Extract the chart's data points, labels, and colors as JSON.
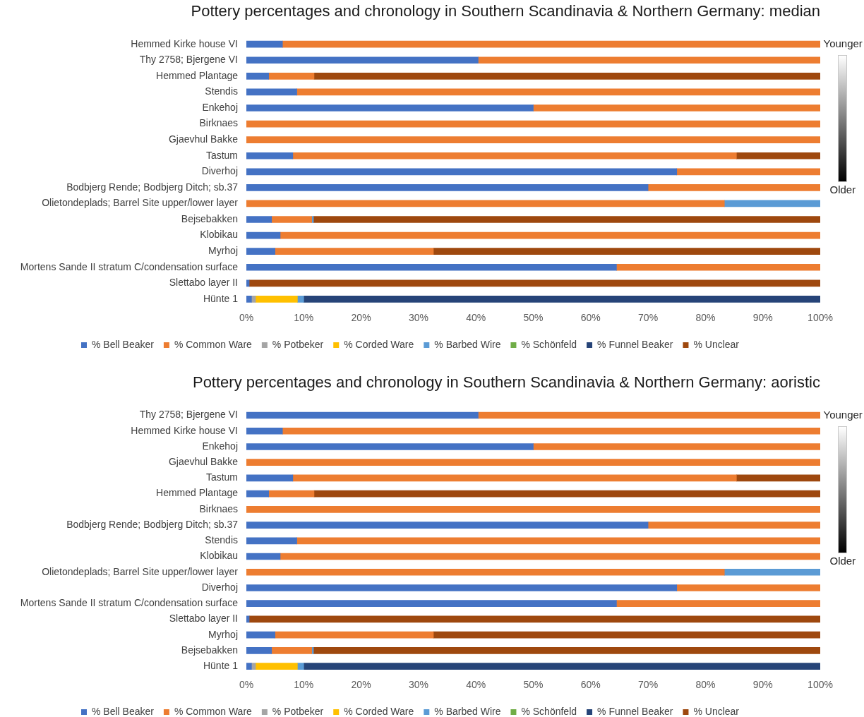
{
  "chart_data": [
    {
      "type": "bar",
      "orientation": "horizontal",
      "stacked": true,
      "title": "Pottery percentages and chronology in Southern Scandinavia & Northern Germany: median",
      "categories": [
        "Hemmed Kirke house VI",
        "Thy 2758; Bjergene VI",
        "Hemmed Plantage",
        "Stendis",
        "Enkehoj",
        "Birknaes",
        "Gjaevhul Bakke",
        "Tastum",
        "Diverhoj",
        "Bodbjerg Rende; Bodbjerg Ditch; sb.37",
        "Olietondeplads; Barrel Site upper/lower layer",
        "Bejsebakken",
        "Klobikau",
        "Myrhoj",
        "Mortens Sande II stratum C/condensation surface",
        "Slettabo layer II",
        "Hünte 1"
      ],
      "series": [
        {
          "name": "% Bell Beaker",
          "color": "#4472c4",
          "values": [
            6.3,
            40.4,
            3.9,
            8.8,
            50,
            null,
            null,
            8.1,
            75,
            70,
            null,
            4.4,
            5.9,
            5.0,
            64.5,
            0.5,
            0.9
          ]
        },
        {
          "name": "% Common Ware",
          "color": "#ed7d31",
          "values": [
            93.7,
            59.6,
            7.9,
            91.2,
            50,
            100,
            100,
            77.3,
            25,
            30,
            83.3,
            7.0,
            94.1,
            27.6,
            35.5,
            null,
            null
          ]
        },
        {
          "name": "% Potbeker",
          "color": "#a5a5a5",
          "values": [
            null,
            null,
            null,
            null,
            null,
            null,
            null,
            null,
            null,
            null,
            null,
            null,
            null,
            null,
            null,
            null,
            0.7
          ]
        },
        {
          "name": "% Corded Ware",
          "color": "#ffc000",
          "values": [
            null,
            null,
            null,
            null,
            null,
            null,
            null,
            null,
            null,
            null,
            null,
            null,
            null,
            null,
            null,
            null,
            7.3
          ]
        },
        {
          "name": "% Barbed Wire",
          "color": "#5b9bd5",
          "values": [
            null,
            null,
            null,
            null,
            null,
            null,
            null,
            null,
            null,
            null,
            16.7,
            0.3,
            null,
            null,
            null,
            null,
            1.1
          ]
        },
        {
          "name": "% Schönfeld",
          "color": "#70ad47",
          "values": [
            null,
            null,
            null,
            null,
            null,
            null,
            null,
            null,
            null,
            null,
            null,
            null,
            null,
            null,
            null,
            null,
            null
          ]
        },
        {
          "name": "% Funnel Beaker",
          "color": "#264478",
          "values": [
            null,
            null,
            null,
            null,
            null,
            null,
            null,
            null,
            null,
            null,
            null,
            null,
            null,
            null,
            null,
            null,
            90.0
          ]
        },
        {
          "name": "% Unclear",
          "color": "#9e480e",
          "values": [
            null,
            null,
            88.2,
            null,
            null,
            null,
            null,
            14.6,
            null,
            null,
            null,
            88.3,
            null,
            67.4,
            null,
            99.5,
            null
          ]
        }
      ],
      "xlim": [
        0,
        100
      ],
      "xticks": [
        {
          "value": 0,
          "label": "0%"
        },
        {
          "value": 10,
          "label": "10%"
        },
        {
          "value": 20,
          "label": "20%"
        },
        {
          "value": 30,
          "label": "30%"
        },
        {
          "value": 40,
          "label": "40%"
        },
        {
          "value": 50,
          "label": "50%"
        },
        {
          "value": 60,
          "label": "60%"
        },
        {
          "value": 70,
          "label": "70%"
        },
        {
          "value": 80,
          "label": "80%"
        },
        {
          "value": 90,
          "label": "90%"
        },
        {
          "value": 100,
          "label": "100%"
        }
      ],
      "legend": "bottom",
      "annotations": [
        "Younger",
        "Older"
      ]
    },
    {
      "type": "bar",
      "orientation": "horizontal",
      "stacked": true,
      "title": "Pottery percentages and chronology in Southern Scandinavia & Northern Germany: aoristic",
      "categories": [
        "Thy 2758; Bjergene VI",
        "Hemmed Kirke house VI",
        "Enkehoj",
        "Gjaevhul Bakke",
        "Tastum",
        "Hemmed Plantage",
        "Birknaes",
        "Bodbjerg Rende; Bodbjerg Ditch; sb.37",
        "Stendis",
        "Klobikau",
        "Olietondeplads; Barrel Site upper/lower layer",
        "Diverhoj",
        "Mortens Sande II stratum C/condensation surface",
        "Slettabo layer II",
        "Myrhoj",
        "Bejsebakken",
        "Hünte 1"
      ],
      "series": [
        {
          "name": "% Bell Beaker",
          "color": "#4472c4",
          "values": [
            40.4,
            6.3,
            50,
            null,
            8.1,
            3.9,
            null,
            70,
            8.8,
            5.9,
            null,
            75,
            64.5,
            0.5,
            5.0,
            4.4,
            0.9
          ]
        },
        {
          "name": "% Common Ware",
          "color": "#ed7d31",
          "values": [
            59.6,
            93.7,
            50,
            100,
            77.3,
            7.9,
            100,
            30,
            91.2,
            94.1,
            83.3,
            25,
            35.5,
            null,
            27.6,
            7.0,
            null
          ]
        },
        {
          "name": "% Potbeker",
          "color": "#a5a5a5",
          "values": [
            null,
            null,
            null,
            null,
            null,
            null,
            null,
            null,
            null,
            null,
            null,
            null,
            null,
            null,
            null,
            null,
            0.7
          ]
        },
        {
          "name": "% Corded Ware",
          "color": "#ffc000",
          "values": [
            null,
            null,
            null,
            null,
            null,
            null,
            null,
            null,
            null,
            null,
            null,
            null,
            null,
            null,
            null,
            null,
            7.3
          ]
        },
        {
          "name": "% Barbed Wire",
          "color": "#5b9bd5",
          "values": [
            null,
            null,
            null,
            null,
            null,
            null,
            null,
            null,
            null,
            null,
            16.7,
            null,
            null,
            null,
            null,
            0.3,
            1.1
          ]
        },
        {
          "name": "% Schönfeld",
          "color": "#70ad47",
          "values": [
            null,
            null,
            null,
            null,
            null,
            null,
            null,
            null,
            null,
            null,
            null,
            null,
            null,
            null,
            null,
            null,
            null
          ]
        },
        {
          "name": "% Funnel Beaker",
          "color": "#264478",
          "values": [
            null,
            null,
            null,
            null,
            null,
            null,
            null,
            null,
            null,
            null,
            null,
            null,
            null,
            null,
            null,
            null,
            90.0
          ]
        },
        {
          "name": "% Unclear",
          "color": "#9e480e",
          "values": [
            null,
            null,
            null,
            null,
            14.6,
            88.2,
            null,
            null,
            null,
            null,
            null,
            null,
            null,
            99.5,
            67.4,
            88.3,
            null
          ]
        }
      ],
      "xlim": [
        0,
        100
      ],
      "xticks": [
        {
          "value": 0,
          "label": "0%"
        },
        {
          "value": 10,
          "label": "10%"
        },
        {
          "value": 20,
          "label": "20%"
        },
        {
          "value": 30,
          "label": "30%"
        },
        {
          "value": 40,
          "label": "40%"
        },
        {
          "value": 50,
          "label": "50%"
        },
        {
          "value": 60,
          "label": "60%"
        },
        {
          "value": 70,
          "label": "70%"
        },
        {
          "value": 80,
          "label": "80%"
        },
        {
          "value": 90,
          "label": "90%"
        },
        {
          "value": 100,
          "label": "100%"
        }
      ],
      "legend": "bottom",
      "annotations": [
        "Younger",
        "Older"
      ]
    }
  ]
}
